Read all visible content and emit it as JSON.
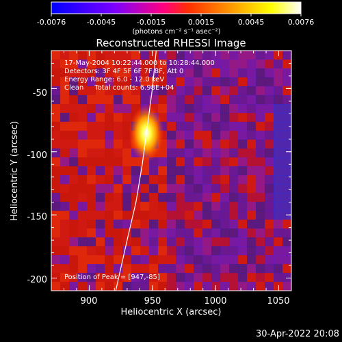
{
  "colorbar": {
    "tick_labels": [
      "-0.0076",
      "-0.0045",
      "-0.0015",
      "0.0015",
      "0.0045",
      "0.0076"
    ],
    "unit_label": "(photons cm⁻² s⁻¹ asec⁻²)",
    "range": [
      -0.0076,
      0.0076
    ],
    "colors": [
      "#0000ff",
      "#7a00ff",
      "#ff0080",
      "#ff3000",
      "#ff9900",
      "#ffff00",
      "#ffffff"
    ]
  },
  "chart_data": {
    "type": "heatmap",
    "title": "Reconstructed RHESSI Image",
    "xlabel": "Heliocentric X (arcsec)",
    "ylabel": "Heliocentric Y (arcsec)",
    "xlim": [
      870,
      1060
    ],
    "ylim": [
      -210,
      -20
    ],
    "x_ticks": [
      900,
      950,
      1000,
      1050
    ],
    "y_ticks": [
      -50,
      -100,
      -150,
      -200
    ],
    "info_lines": [
      "17-May-2004 10:22:44.000 to 10:28:44.000",
      "Detectors: 3F 4F 5F 6F 7F 8F, Att 0",
      "Energy Range: 6.0 - 12.0 keV",
      "Clean     Total counts: 6.98E+04"
    ],
    "peak_label": "Position of Peak = [947,-85]",
    "peak": [
      947,
      -85
    ],
    "limb_curve": [
      [
        921,
        -210
      ],
      [
        930,
        -170
      ],
      [
        937,
        -140
      ],
      [
        942,
        -110
      ],
      [
        946,
        -80
      ],
      [
        950,
        -50
      ],
      [
        953,
        -20
      ]
    ]
  },
  "footer_date": "30-Apr-2022 20:08"
}
